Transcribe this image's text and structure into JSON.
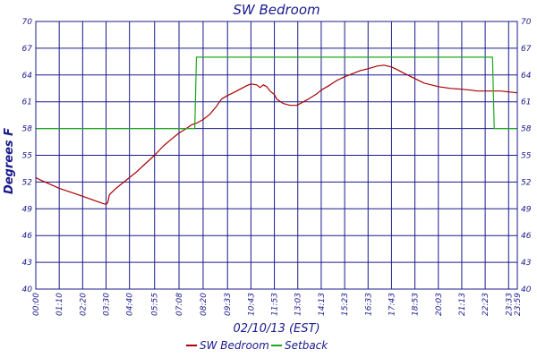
{
  "chart_data": {
    "type": "line",
    "title": "SW Bedroom",
    "xlabel": "02/10/13 (EST)",
    "ylabel": "Degrees F",
    "ylim": [
      40,
      70
    ],
    "yticks": [
      40,
      43,
      46,
      49,
      52,
      55,
      58,
      61,
      64,
      67,
      70
    ],
    "xlim": [
      "00:00",
      "23:59"
    ],
    "xtick_labels": [
      "00:00",
      "01:10",
      "02:20",
      "03:30",
      "04:40",
      "05:55",
      "07:08",
      "08:20",
      "09:33",
      "10:43",
      "11:53",
      "13:03",
      "14:13",
      "15:23",
      "16:33",
      "17:43",
      "18:53",
      "20:03",
      "21:13",
      "22:23",
      "23:33",
      "23:59"
    ],
    "grid": true,
    "legend": "bottom",
    "series": [
      {
        "name": "SW Bedroom",
        "color": "#aa0000",
        "x": [
          "00:00",
          "00:10",
          "00:40",
          "01:10",
          "01:50",
          "02:20",
          "02:50",
          "03:20",
          "03:30",
          "03:35",
          "03:40",
          "04:00",
          "04:20",
          "04:40",
          "05:00",
          "05:20",
          "05:55",
          "06:20",
          "06:45",
          "07:08",
          "07:30",
          "07:45",
          "08:00",
          "08:20",
          "08:40",
          "09:00",
          "09:15",
          "09:33",
          "09:50",
          "10:10",
          "10:30",
          "10:43",
          "11:00",
          "11:10",
          "11:20",
          "11:30",
          "11:40",
          "11:53",
          "12:00",
          "12:20",
          "12:40",
          "13:00",
          "13:10",
          "13:30",
          "14:00",
          "14:13",
          "14:40",
          "15:00",
          "15:23",
          "15:50",
          "16:10",
          "16:33",
          "17:00",
          "17:20",
          "17:43",
          "18:00",
          "18:20",
          "18:53",
          "19:20",
          "20:03",
          "20:40",
          "21:13",
          "21:40",
          "22:00",
          "22:23",
          "22:50",
          "23:10",
          "23:33",
          "23:59"
        ],
        "y": [
          52.5,
          52.3,
          51.8,
          51.3,
          50.8,
          50.4,
          50.0,
          49.6,
          49.5,
          49.7,
          50.6,
          51.3,
          51.9,
          52.5,
          53.1,
          53.8,
          55.0,
          56.0,
          56.8,
          57.5,
          58.0,
          58.4,
          58.6,
          59.0,
          59.6,
          60.5,
          61.3,
          61.7,
          62.0,
          62.4,
          62.8,
          63.0,
          62.9,
          62.6,
          62.9,
          62.7,
          62.2,
          61.8,
          61.3,
          60.8,
          60.6,
          60.6,
          60.8,
          61.2,
          61.9,
          62.3,
          62.9,
          63.4,
          63.8,
          64.2,
          64.5,
          64.7,
          65.0,
          65.1,
          64.9,
          64.6,
          64.2,
          63.6,
          63.1,
          62.7,
          62.5,
          62.4,
          62.3,
          62.2,
          62.2,
          62.2,
          62.2,
          62.1,
          62.0
        ]
      },
      {
        "name": "Setback",
        "color": "#1aaa1a",
        "x": [
          "00:00",
          "07:55",
          "08:00",
          "22:45",
          "22:50",
          "23:59"
        ],
        "y": [
          58,
          58,
          66,
          66,
          58,
          58
        ]
      }
    ]
  }
}
